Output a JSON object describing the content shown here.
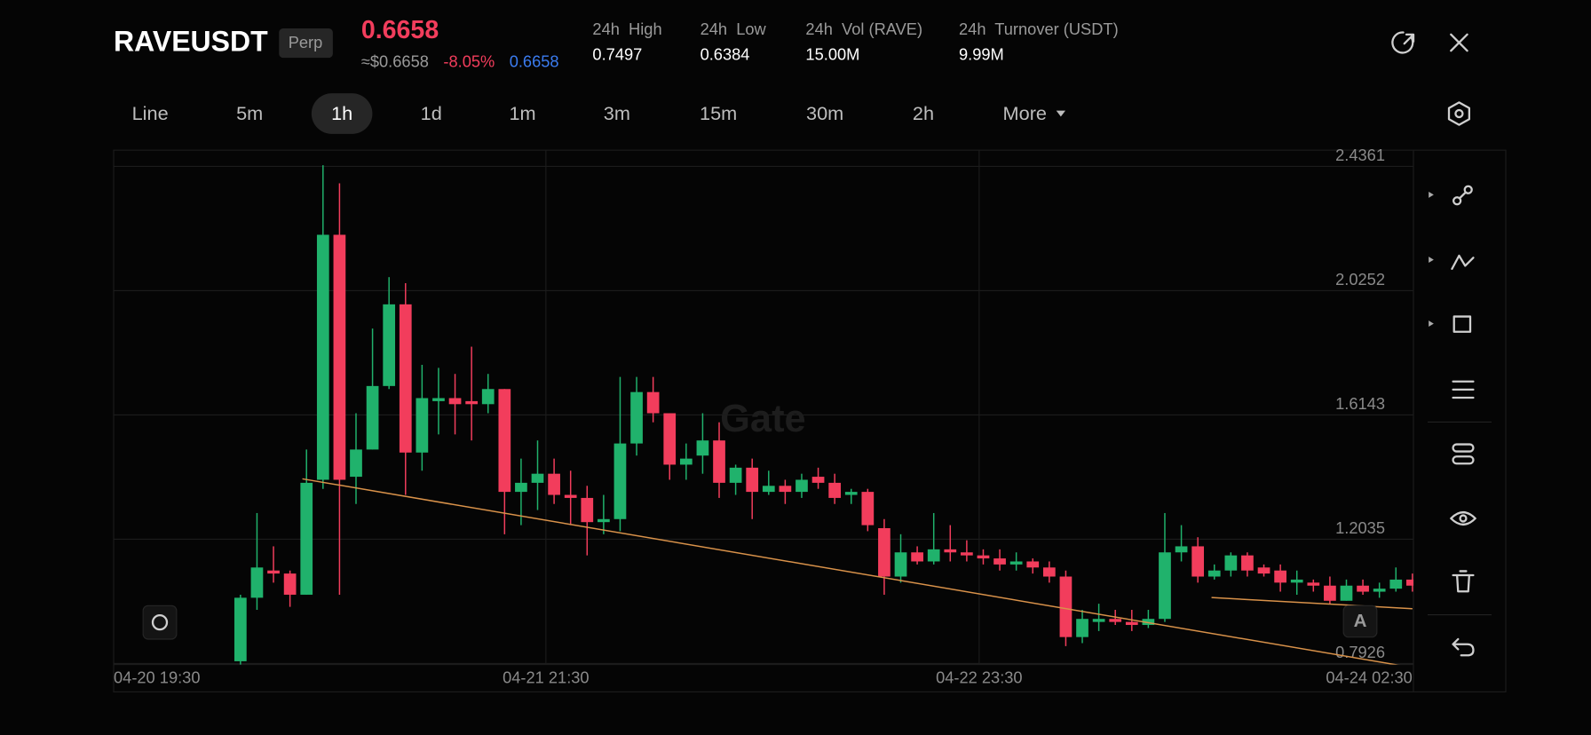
{
  "header": {
    "symbol": "RAVEUSDT",
    "badge": "Perp",
    "price": "0.6658",
    "approx_price": "≈$0.6658",
    "change": "-8.05%",
    "mark_price": "0.6658",
    "stats": [
      {
        "label": "24h  High",
        "value": "0.7497"
      },
      {
        "label": "24h  Low",
        "value": "0.6384"
      },
      {
        "label": "24h  Vol (RAVE)",
        "value": "15.00M"
      },
      {
        "label": "24h  Turnover (USDT)",
        "value": "9.99M"
      }
    ]
  },
  "timeframes": {
    "items": [
      "Line",
      "5m",
      "1h",
      "1d",
      "1m",
      "3m",
      "15m",
      "30m",
      "2h",
      "More"
    ],
    "active": 2
  },
  "chart_data": {
    "type": "candlestick",
    "watermark": "Gate",
    "scale_badge": "A",
    "up_color": "#20b26c",
    "down_color": "#f23d5c",
    "ylim": [
      0.7893,
      2.4898
    ],
    "yticks": [
      0.7926,
      1.2035,
      1.6143,
      2.0252,
      2.4361
    ],
    "grid": true,
    "xticks": [
      "04-20 19:30",
      "04-21 21:30",
      "04-22 23:30",
      "04-24 02:30"
    ],
    "open": [
      0.8,
      1.01,
      1.1,
      1.09,
      1.02,
      1.4,
      2.21,
      1.41,
      1.5,
      1.71,
      1.98,
      1.49,
      1.66,
      1.67,
      1.66,
      1.65,
      1.7,
      1.36,
      1.39,
      1.42,
      1.35,
      1.34,
      1.26,
      1.27,
      1.52,
      1.69,
      1.62,
      1.45,
      1.48,
      1.53,
      1.39,
      1.44,
      1.36,
      1.38,
      1.36,
      1.41,
      1.39,
      1.35,
      1.36,
      1.24,
      1.08,
      1.16,
      1.13,
      1.17,
      1.16,
      1.15,
      1.14,
      1.12,
      1.13,
      1.11,
      1.08,
      0.88,
      0.93,
      0.94,
      0.93,
      0.92,
      0.94,
      1.16,
      1.18,
      1.08,
      1.1,
      1.15,
      1.11,
      1.1,
      1.06,
      1.06,
      1.05,
      1.0,
      1.05,
      1.03,
      1.04,
      1.07
    ],
    "high": [
      1.02,
      1.29,
      1.18,
      1.1,
      1.5,
      2.44,
      2.38,
      1.62,
      1.9,
      2.07,
      2.05,
      1.78,
      1.77,
      1.75,
      1.84,
      1.75,
      1.7,
      1.47,
      1.53,
      1.47,
      1.43,
      1.38,
      1.35,
      1.74,
      1.74,
      1.74,
      1.62,
      1.52,
      1.62,
      1.59,
      1.45,
      1.47,
      1.43,
      1.4,
      1.42,
      1.44,
      1.42,
      1.37,
      1.37,
      1.27,
      1.22,
      1.18,
      1.29,
      1.25,
      1.2,
      1.17,
      1.17,
      1.16,
      1.14,
      1.13,
      1.1,
      0.97,
      0.99,
      0.97,
      0.97,
      0.97,
      1.29,
      1.25,
      1.21,
      1.12,
      1.16,
      1.16,
      1.12,
      1.12,
      1.1,
      1.07,
      1.08,
      1.07,
      1.07,
      1.06,
      1.11,
      1.09
    ],
    "low": [
      0.78,
      0.97,
      1.06,
      0.98,
      1.02,
      1.37,
      1.02,
      1.32,
      1.5,
      1.7,
      1.35,
      1.43,
      1.55,
      1.55,
      1.53,
      1.62,
      1.22,
      1.25,
      1.3,
      1.32,
      1.25,
      1.15,
      1.22,
      1.23,
      1.48,
      1.59,
      1.4,
      1.4,
      1.42,
      1.34,
      1.35,
      1.27,
      1.35,
      1.32,
      1.34,
      1.37,
      1.32,
      1.32,
      1.23,
      1.02,
      1.06,
      1.12,
      1.12,
      1.13,
      1.13,
      1.12,
      1.1,
      1.1,
      1.09,
      1.06,
      0.85,
      0.86,
      0.9,
      0.92,
      0.9,
      0.91,
      0.93,
      1.13,
      1.06,
      1.07,
      1.08,
      1.08,
      1.08,
      1.03,
      1.02,
      1.03,
      0.99,
      1.0,
      1.02,
      1.01,
      1.03,
      1.03
    ],
    "close": [
      1.01,
      1.11,
      1.09,
      1.02,
      1.39,
      2.21,
      1.4,
      1.5,
      1.71,
      1.98,
      1.49,
      1.67,
      1.67,
      1.65,
      1.65,
      1.7,
      1.36,
      1.39,
      1.42,
      1.35,
      1.34,
      1.26,
      1.27,
      1.52,
      1.69,
      1.62,
      1.45,
      1.47,
      1.53,
      1.39,
      1.44,
      1.36,
      1.38,
      1.36,
      1.4,
      1.39,
      1.34,
      1.36,
      1.25,
      1.08,
      1.16,
      1.13,
      1.17,
      1.16,
      1.15,
      1.14,
      1.12,
      1.13,
      1.11,
      1.08,
      0.88,
      0.94,
      0.94,
      0.93,
      0.92,
      0.94,
      1.16,
      1.18,
      1.08,
      1.1,
      1.15,
      1.1,
      1.09,
      1.06,
      1.07,
      1.05,
      1.0,
      1.05,
      1.03,
      1.04,
      1.07,
      1.05
    ]
  }
}
